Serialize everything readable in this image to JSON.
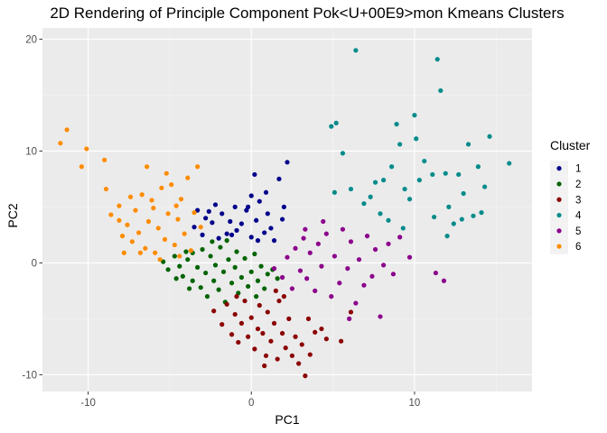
{
  "chart_data": {
    "type": "scatter",
    "title": "2D Rendering of Principle Component Pok<U+00E9>mon Kmeans Clusters",
    "xlabel": "PC1",
    "ylabel": "PC2",
    "xlim": [
      -12.8,
      17.2
    ],
    "ylim": [
      -11.5,
      21.0
    ],
    "x_ticks": [
      -10,
      0,
      10
    ],
    "y_ticks": [
      -10,
      0,
      10,
      20
    ],
    "grid": true,
    "legend": {
      "title": "Cluster",
      "position": "right"
    },
    "series": [
      {
        "name": "1",
        "color": "#00008B",
        "points": [
          [
            -3.5,
            3.2
          ],
          [
            -3.0,
            2.5
          ],
          [
            -2.6,
            4.6
          ],
          [
            -2.4,
            3.6
          ],
          [
            -2.0,
            2.2
          ],
          [
            -1.8,
            4.4
          ],
          [
            -1.5,
            2.6
          ],
          [
            -1.3,
            3.7
          ],
          [
            -1.0,
            5.0
          ],
          [
            -0.9,
            2.9
          ],
          [
            -0.6,
            3.5
          ],
          [
            -0.3,
            4.7
          ],
          [
            0.0,
            2.3
          ],
          [
            0.0,
            6.0
          ],
          [
            0.2,
            7.9
          ],
          [
            0.3,
            3.8
          ],
          [
            0.5,
            5.5
          ],
          [
            0.8,
            2.7
          ],
          [
            1.0,
            4.4
          ],
          [
            1.2,
            3.1
          ],
          [
            1.4,
            2.0
          ],
          [
            1.7,
            7.5
          ],
          [
            2.2,
            9.0
          ],
          [
            2.0,
            5.0
          ],
          [
            1.9,
            3.9
          ],
          [
            -2.2,
            5.2
          ],
          [
            -2.8,
            4.0
          ],
          [
            -1.2,
            2.5
          ],
          [
            0.4,
            2.0
          ],
          [
            -0.2,
            5.0
          ],
          [
            -3.3,
            4.7
          ],
          [
            0.9,
            6.3
          ]
        ]
      },
      {
        "name": "2",
        "color": "#006400",
        "points": [
          [
            -5.4,
            0.1
          ],
          [
            -5.1,
            -0.6
          ],
          [
            -4.7,
            0.6
          ],
          [
            -4.4,
            -0.3
          ],
          [
            -4.2,
            -1.2
          ],
          [
            -3.9,
            0.3
          ],
          [
            -3.6,
            -1.6
          ],
          [
            -3.6,
            0.9
          ],
          [
            -3.3,
            -0.4
          ],
          [
            -3.1,
            -2.2
          ],
          [
            -3.0,
            1.2
          ],
          [
            -2.8,
            -0.9
          ],
          [
            -2.7,
            -3.0
          ],
          [
            -2.5,
            0.6
          ],
          [
            -2.3,
            -1.6
          ],
          [
            -2.2,
            -0.2
          ],
          [
            -2.0,
            -2.4
          ],
          [
            -1.9,
            1.4
          ],
          [
            -1.7,
            -0.8
          ],
          [
            -1.6,
            -3.5
          ],
          [
            -1.4,
            0.3
          ],
          [
            -1.2,
            -1.8
          ],
          [
            -1.0,
            -0.4
          ],
          [
            -0.9,
            1.0
          ],
          [
            -0.8,
            -2.7
          ],
          [
            -0.6,
            -1.3
          ],
          [
            -0.4,
            0.4
          ],
          [
            -0.2,
            -2.1
          ],
          [
            0.0,
            -0.8
          ],
          [
            0.2,
            0.8
          ],
          [
            0.4,
            -1.6
          ],
          [
            0.6,
            -0.3
          ],
          [
            0.8,
            -2.3
          ],
          [
            1.0,
            -1.0
          ],
          [
            1.3,
            -0.6
          ],
          [
            1.6,
            -1.4
          ],
          [
            -4.6,
            -1.4
          ],
          [
            -2.4,
            1.9
          ],
          [
            -1.5,
            2.0
          ],
          [
            0.3,
            -3.0
          ],
          [
            -3.8,
            -2.3
          ],
          [
            -4.0,
            1.0
          ]
        ]
      },
      {
        "name": "3",
        "color": "#8B0000",
        "points": [
          [
            -2.3,
            -4.3
          ],
          [
            -1.8,
            -5.5
          ],
          [
            -1.5,
            -3.7
          ],
          [
            -1.2,
            -6.4
          ],
          [
            -1.0,
            -4.6
          ],
          [
            -0.8,
            -7.1
          ],
          [
            -0.6,
            -5.4
          ],
          [
            -0.4,
            -3.4
          ],
          [
            -0.2,
            -6.6
          ],
          [
            0.0,
            -4.9
          ],
          [
            0.2,
            -7.7
          ],
          [
            0.4,
            -5.9
          ],
          [
            0.5,
            -3.8
          ],
          [
            0.7,
            -6.3
          ],
          [
            0.9,
            -8.3
          ],
          [
            1.0,
            -4.4
          ],
          [
            1.2,
            -7.0
          ],
          [
            1.4,
            -5.4
          ],
          [
            1.6,
            -8.6
          ],
          [
            1.7,
            -3.4
          ],
          [
            1.9,
            -6.3
          ],
          [
            2.1,
            -7.6
          ],
          [
            2.3,
            -5.0
          ],
          [
            2.5,
            -8.3
          ],
          [
            2.7,
            -6.6
          ],
          [
            2.9,
            -9.0
          ],
          [
            3.1,
            -7.3
          ],
          [
            3.3,
            -10.1
          ],
          [
            3.6,
            -8.2
          ],
          [
            3.9,
            -6.2
          ],
          [
            4.3,
            -5.9
          ],
          [
            5.5,
            -7.0
          ],
          [
            6.1,
            -4.4
          ],
          [
            4.6,
            -6.8
          ],
          [
            2.0,
            -3.0
          ],
          [
            -0.9,
            -3.0
          ],
          [
            0.8,
            -9.2
          ],
          [
            1.5,
            -2.5
          ],
          [
            3.5,
            -5.0
          ]
        ]
      },
      {
        "name": "4",
        "color": "#008B8B",
        "points": [
          [
            4.9,
            12.2
          ],
          [
            5.2,
            12.5
          ],
          [
            5.6,
            9.8
          ],
          [
            6.4,
            19.0
          ],
          [
            5.1,
            6.3
          ],
          [
            6.1,
            6.6
          ],
          [
            6.9,
            5.3
          ],
          [
            7.3,
            5.9
          ],
          [
            7.9,
            4.4
          ],
          [
            8.4,
            3.8
          ],
          [
            8.1,
            7.4
          ],
          [
            8.6,
            8.6
          ],
          [
            8.9,
            12.4
          ],
          [
            9.3,
            3.1
          ],
          [
            9.7,
            5.7
          ],
          [
            9.4,
            6.6
          ],
          [
            10.3,
            7.4
          ],
          [
            10.0,
            13.2
          ],
          [
            10.6,
            9.1
          ],
          [
            11.1,
            7.9
          ],
          [
            11.4,
            18.2
          ],
          [
            11.6,
            15.4
          ],
          [
            11.9,
            8.0
          ],
          [
            12.1,
            5.0
          ],
          [
            12.4,
            3.5
          ],
          [
            12.7,
            7.9
          ],
          [
            13.0,
            6.2
          ],
          [
            13.3,
            10.6
          ],
          [
            13.6,
            4.2
          ],
          [
            13.9,
            8.6
          ],
          [
            14.3,
            6.8
          ],
          [
            14.6,
            11.3
          ],
          [
            15.8,
            8.9
          ],
          [
            11.2,
            4.1
          ],
          [
            10.1,
            11.1
          ],
          [
            9.1,
            10.6
          ],
          [
            12.0,
            2.4
          ],
          [
            12.9,
            3.9
          ],
          [
            14.1,
            4.5
          ],
          [
            7.6,
            7.2
          ]
        ]
      },
      {
        "name": "5",
        "color": "#8B008B",
        "points": [
          [
            1.4,
            -0.5
          ],
          [
            1.9,
            -1.3
          ],
          [
            2.2,
            0.5
          ],
          [
            2.5,
            -2.3
          ],
          [
            2.7,
            1.3
          ],
          [
            3.0,
            -0.7
          ],
          [
            3.2,
            2.2
          ],
          [
            3.4,
            -1.4
          ],
          [
            3.6,
            0.9
          ],
          [
            3.9,
            -2.5
          ],
          [
            4.1,
            1.7
          ],
          [
            4.3,
            -0.3
          ],
          [
            4.6,
            2.6
          ],
          [
            4.9,
            -3.0
          ],
          [
            5.1,
            0.6
          ],
          [
            5.4,
            -1.8
          ],
          [
            5.6,
            3.0
          ],
          [
            5.9,
            -0.5
          ],
          [
            6.1,
            1.9
          ],
          [
            6.4,
            -3.6
          ],
          [
            6.6,
            0.3
          ],
          [
            6.9,
            -2.0
          ],
          [
            7.1,
            2.4
          ],
          [
            7.4,
            -1.2
          ],
          [
            7.6,
            1.2
          ],
          [
            7.9,
            -4.8
          ],
          [
            8.1,
            -0.2
          ],
          [
            8.4,
            1.7
          ],
          [
            8.7,
            -1.0
          ],
          [
            9.1,
            2.3
          ],
          [
            11.3,
            -0.9
          ],
          [
            11.8,
            -1.6
          ],
          [
            9.7,
            0.5
          ],
          [
            6.0,
            -5.0
          ],
          [
            4.4,
            3.7
          ],
          [
            3.3,
            3.0
          ]
        ]
      },
      {
        "name": "6",
        "color": "#FF8C00",
        "points": [
          [
            -11.7,
            10.7
          ],
          [
            -11.3,
            11.9
          ],
          [
            -10.4,
            8.6
          ],
          [
            -10.1,
            10.2
          ],
          [
            -9.0,
            9.2
          ],
          [
            -8.9,
            6.6
          ],
          [
            -8.6,
            4.3
          ],
          [
            -8.1,
            5.1
          ],
          [
            -7.9,
            2.4
          ],
          [
            -7.6,
            3.4
          ],
          [
            -7.3,
            1.9
          ],
          [
            -7.1,
            4.7
          ],
          [
            -6.9,
            2.7
          ],
          [
            -6.7,
            6.1
          ],
          [
            -6.5,
            1.3
          ],
          [
            -6.3,
            3.7
          ],
          [
            -6.1,
            5.6
          ],
          [
            -5.9,
            0.9
          ],
          [
            -5.7,
            3.1
          ],
          [
            -5.5,
            6.7
          ],
          [
            -5.3,
            2.1
          ],
          [
            -5.1,
            4.4
          ],
          [
            -4.9,
            7.0
          ],
          [
            -4.7,
            1.6
          ],
          [
            -4.5,
            3.9
          ],
          [
            -4.3,
            5.7
          ],
          [
            -4.1,
            2.6
          ],
          [
            -3.9,
            7.6
          ],
          [
            -3.7,
            1.1
          ],
          [
            -3.5,
            4.5
          ],
          [
            -3.3,
            8.6
          ],
          [
            -3.1,
            3.2
          ],
          [
            -6.4,
            8.6
          ],
          [
            -5.2,
            8.0
          ],
          [
            -8.1,
            3.8
          ],
          [
            -7.4,
            5.9
          ],
          [
            -6.0,
            4.9
          ],
          [
            -4.6,
            5.1
          ],
          [
            -5.6,
            0.3
          ],
          [
            -6.8,
            0.9
          ],
          [
            -7.8,
            0.9
          ],
          [
            -4.4,
            0.6
          ]
        ]
      }
    ]
  }
}
